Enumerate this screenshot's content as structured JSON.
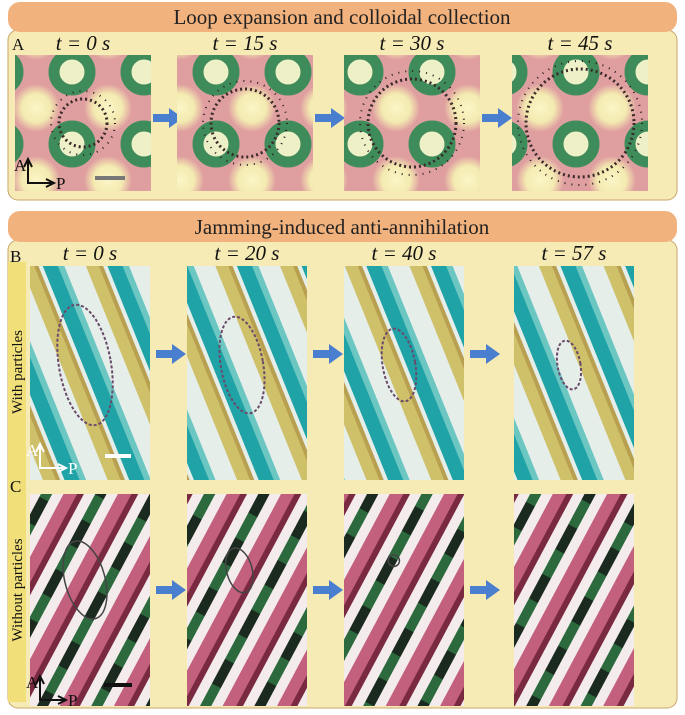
{
  "panel_a": {
    "banner": "Loop expansion and colloidal collection",
    "letter": "A",
    "times": [
      "t = 0 s",
      "t = 15 s",
      "t = 30 s",
      "t = 45 s"
    ],
    "axis_labels": [
      "A",
      "P"
    ]
  },
  "panel_bc": {
    "banner": "Jamming-induced anti-annihilation",
    "times": [
      "t = 0 s",
      "t = 20 s",
      "t = 40 s",
      "t = 57 s"
    ],
    "rows": [
      {
        "letter": "B",
        "side_label": "With particles",
        "axis_labels": [
          "A",
          "P"
        ]
      },
      {
        "letter": "C",
        "side_label": "Without particles",
        "axis_labels": [
          "A",
          "P"
        ]
      }
    ]
  }
}
